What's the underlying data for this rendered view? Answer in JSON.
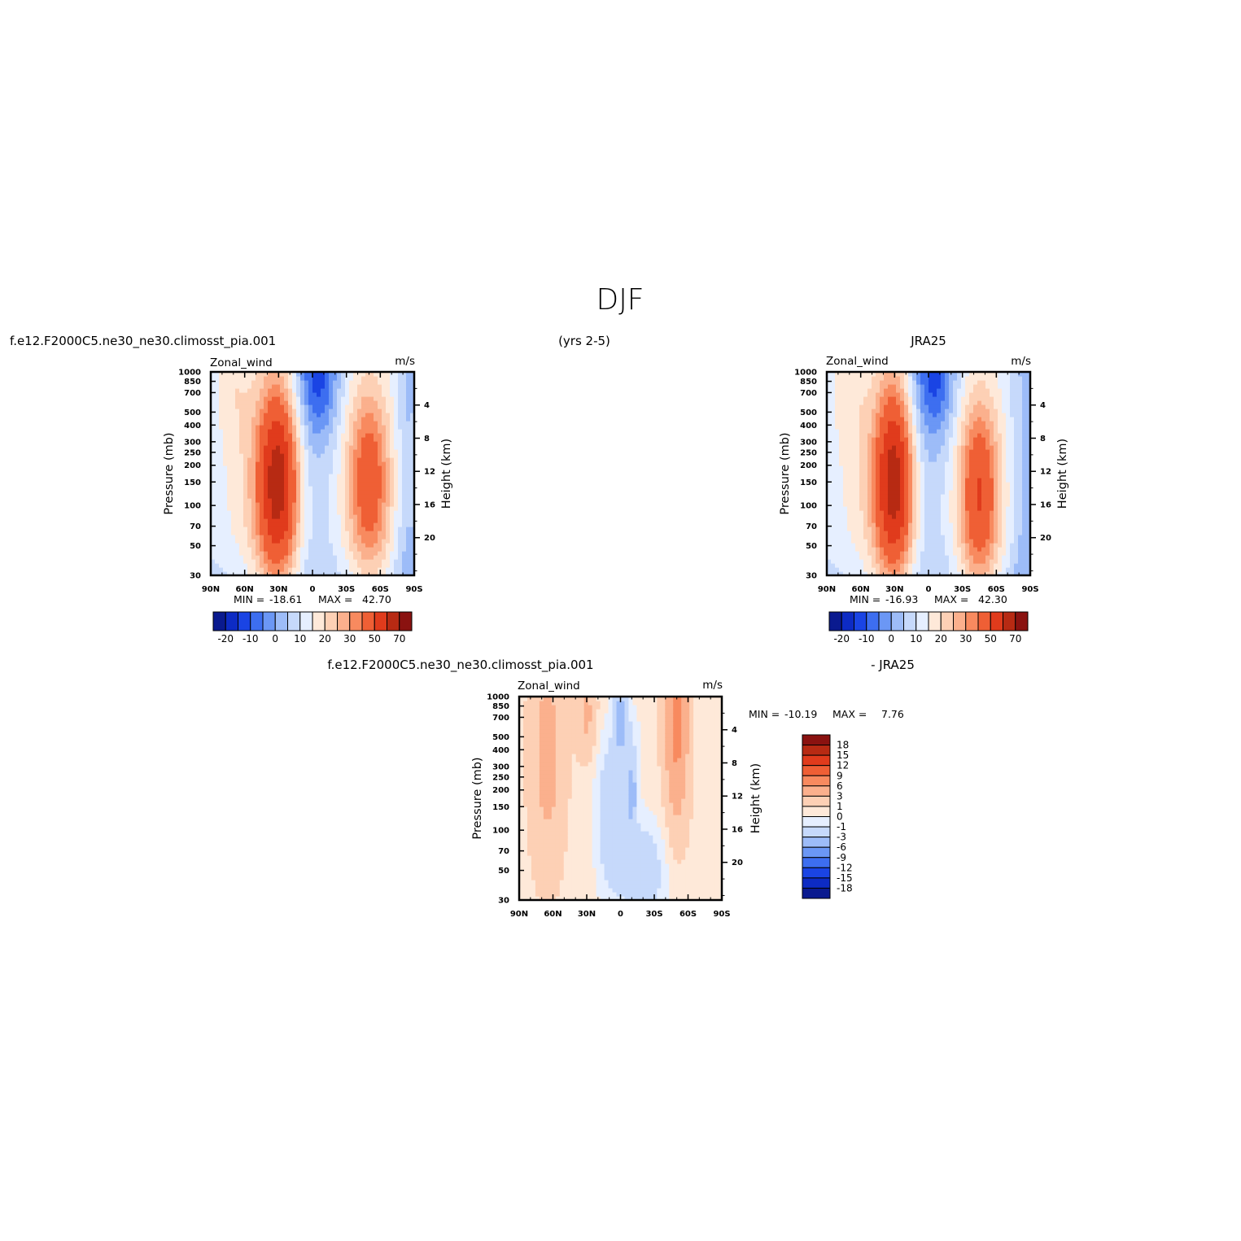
{
  "figure": {
    "title": "DJF",
    "case_name": "f.e12.F2000C5.ne30_ne30.climosst_pia.001",
    "years": "(yrs 2-5)",
    "reference_name": "JRA25",
    "difference_title_left": "f.e12.F2000C5.ne30_ne30.climosst_pia.001",
    "difference_title_right": "- JRA25"
  },
  "colors": {
    "full_field_palette": [
      "#0a1a8f",
      "#0d2bc4",
      "#1a44e4",
      "#3d6ef0",
      "#6b97f5",
      "#9dbcf8",
      "#c6d9fb",
      "#e6efff",
      "#fee9d9",
      "#fdd0b5",
      "#fbb08d",
      "#f88a5f",
      "#ef5f35",
      "#e03b1c",
      "#b72a13",
      "#8a1210"
    ],
    "difference_palette": [
      "#0a1a8f",
      "#0d2bc4",
      "#1a44e4",
      "#3d6ef0",
      "#6b97f5",
      "#9dbcf8",
      "#c6d9fb",
      "#e6efff",
      "#fee9d9",
      "#fdd0b5",
      "#fbb08d",
      "#f88a5f",
      "#ef5f35",
      "#e03b1c",
      "#b72a13",
      "#8a1210"
    ]
  },
  "chart_data": [
    {
      "type": "heatmap",
      "title": "f.e12.F2000C5.ne30_ne30.climosst_pia.001",
      "left_label": "Zonal_wind",
      "right_label": "m/s",
      "xlabel": "",
      "ylabel": "Pressure (mb)",
      "ylabel_right": "Height (km)",
      "x_ticks": [
        "90N",
        "60N",
        "30N",
        "0",
        "30S",
        "60S",
        "90S"
      ],
      "y_ticks": [
        "30",
        "50",
        "70",
        "100",
        "150",
        "200",
        "250",
        "300",
        "400",
        "500",
        "700",
        "850",
        "1000"
      ],
      "right_ticks": [
        "4",
        "8",
        "12",
        "16",
        "20"
      ],
      "ylim": [
        1000,
        30
      ],
      "xlim": [
        90,
        -90
      ],
      "y_scale": "log",
      "stats": {
        "min_label": "MIN =",
        "min": "-18.61",
        "max_label": "MAX =",
        "max": "42.70"
      },
      "colorbar_labels": [
        "-20",
        "-10",
        "0",
        "10",
        "20",
        "30",
        "50",
        "70"
      ],
      "jets": [
        {
          "lat": 30,
          "p": 200,
          "max": 42.7,
          "lat_width": 13,
          "p_width": 0.5
        },
        {
          "lat": -50,
          "p": 200,
          "max": 31,
          "lat_width": 14,
          "p_width": 0.5
        }
      ],
      "min": -18.61,
      "max": 42.7
    },
    {
      "type": "heatmap",
      "title": "JRA25",
      "left_label": "Zonal_wind",
      "right_label": "m/s",
      "xlabel": "",
      "ylabel": "Pressure (mb)",
      "ylabel_right": "Height (km)",
      "x_ticks": [
        "90N",
        "60N",
        "30N",
        "0",
        "30S",
        "60S",
        "90S"
      ],
      "y_ticks": [
        "30",
        "50",
        "70",
        "100",
        "150",
        "200",
        "250",
        "300",
        "400",
        "500",
        "700",
        "850",
        "1000"
      ],
      "right_ticks": [
        "4",
        "8",
        "12",
        "16",
        "20"
      ],
      "ylim": [
        1000,
        30
      ],
      "xlim": [
        90,
        -90
      ],
      "y_scale": "log",
      "stats": {
        "min_label": "MIN =",
        "min": "-16.93",
        "max_label": "MAX =",
        "max": "42.30"
      },
      "colorbar_labels": [
        "-20",
        "-10",
        "0",
        "10",
        "20",
        "30",
        "50",
        "70"
      ],
      "jets": [
        {
          "lat": 30,
          "p": 200,
          "max": 42.3,
          "lat_width": 12,
          "p_width": 0.5
        },
        {
          "lat": -45,
          "p": 250,
          "max": 35,
          "lat_width": 13,
          "p_width": 0.5
        }
      ],
      "min": -16.93,
      "max": 42.3
    },
    {
      "type": "heatmap",
      "title": "f.e12.F2000C5.ne30_ne30.climosst_pia.001 - JRA25",
      "left_label": "Zonal_wind",
      "right_label": "m/s",
      "xlabel": "",
      "ylabel": "Pressure (mb)",
      "ylabel_right": "Height (km)",
      "x_ticks": [
        "90N",
        "60N",
        "30N",
        "0",
        "30S",
        "60S",
        "90S"
      ],
      "y_ticks": [
        "30",
        "50",
        "70",
        "100",
        "150",
        "200",
        "250",
        "300",
        "400",
        "500",
        "700",
        "850",
        "1000"
      ],
      "right_ticks": [
        "4",
        "8",
        "12",
        "16",
        "20"
      ],
      "ylim": [
        1000,
        30
      ],
      "xlim": [
        90,
        -90
      ],
      "y_scale": "log",
      "stats": {
        "min_label": "MIN =",
        "min": "-10.19",
        "max_label": "MAX =",
        "max": "7.76"
      },
      "colorbar_labels": [
        "18",
        "15",
        "12",
        "9",
        "6",
        "3",
        "1",
        "0",
        "-1",
        "-3",
        "-6",
        "-9",
        "-12",
        "-15",
        "-18"
      ],
      "min": -10.19,
      "max": 7.76
    }
  ]
}
